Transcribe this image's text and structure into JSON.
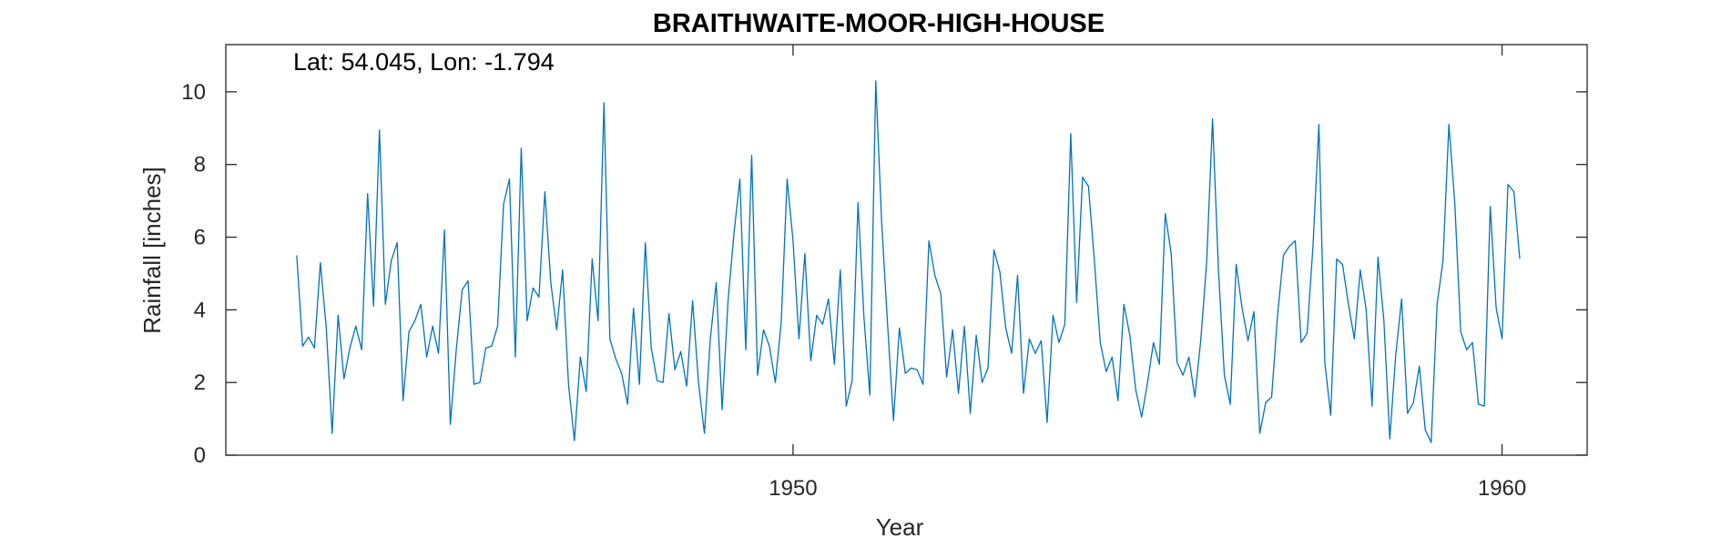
{
  "chart_data": {
    "type": "line",
    "title": "BRAITHWAITE-MOOR-HIGH-HOUSE",
    "annotation": "Lat: 54.045, Lon: -1.794",
    "xlabel": "Year",
    "ylabel": "Rainfall [inches]",
    "xlim": [
      1942,
      1961.2
    ],
    "ylim": [
      0,
      11.3
    ],
    "x_ticks": [
      1950,
      1960
    ],
    "y_ticks": [
      0,
      2,
      4,
      6,
      8,
      10
    ],
    "grid": false,
    "legend": "none",
    "line_color": "#0072BD",
    "series": [
      {
        "x_start": "1943-01",
        "x_step": "month",
        "values": [
          5.5,
          3.0,
          3.25,
          2.95,
          5.3,
          3.5,
          0.6,
          3.85,
          2.1,
          2.95,
          3.55,
          2.9,
          7.2,
          4.1,
          8.95,
          4.15,
          5.35,
          5.85,
          1.5,
          3.4,
          3.7,
          4.15,
          2.7,
          3.55,
          2.8,
          6.2,
          0.85,
          2.9,
          4.55,
          4.8,
          1.95,
          2.0,
          2.95,
          3.0,
          3.55,
          6.9,
          7.6,
          2.7,
          8.45,
          3.7,
          4.6,
          4.35,
          7.25,
          4.75,
          3.45,
          5.1,
          1.95,
          0.4,
          2.7,
          1.75,
          5.4,
          3.7,
          9.7,
          3.2,
          2.65,
          2.25,
          1.4,
          4.05,
          1.95,
          5.85,
          2.95,
          2.05,
          2.0,
          3.9,
          2.35,
          2.85,
          1.9,
          4.25,
          2.0,
          0.6,
          3.2,
          4.75,
          1.25,
          4.25,
          6.1,
          7.6,
          2.9,
          8.25,
          2.2,
          3.45,
          3.0,
          2.0,
          3.65,
          7.6,
          5.9,
          3.2,
          5.55,
          2.6,
          3.85,
          3.6,
          4.3,
          2.5,
          5.1,
          1.35,
          2.05,
          6.95,
          3.8,
          1.65,
          10.3,
          6.4,
          3.6,
          0.95,
          3.5,
          2.25,
          2.4,
          2.35,
          1.95,
          5.9,
          4.95,
          4.45,
          2.15,
          3.45,
          1.7,
          3.55,
          1.15,
          3.3,
          2.0,
          2.4,
          5.65,
          5.05,
          3.5,
          2.8,
          4.95,
          1.7,
          3.2,
          2.8,
          3.15,
          0.9,
          3.85,
          3.1,
          3.6,
          8.85,
          4.2,
          7.65,
          7.4,
          5.35,
          3.1,
          2.3,
          2.7,
          1.5,
          4.15,
          3.3,
          1.8,
          1.05,
          2.0,
          3.1,
          2.5,
          6.65,
          5.55,
          2.55,
          2.2,
          2.7,
          1.6,
          3.15,
          5.3,
          9.25,
          5.1,
          2.2,
          1.4,
          5.25,
          4.05,
          3.15,
          3.95,
          0.6,
          1.45,
          1.6,
          3.85,
          5.5,
          5.75,
          5.9,
          3.1,
          3.35,
          5.75,
          9.1,
          2.55,
          1.1,
          5.4,
          5.25,
          4.15,
          3.2,
          5.1,
          4.0,
          1.35,
          5.45,
          3.7,
          0.45,
          2.75,
          4.3,
          1.15,
          1.45,
          2.45,
          0.7,
          0.35,
          4.15,
          5.35,
          9.1,
          6.95,
          3.4,
          2.9,
          3.1,
          1.4,
          1.35,
          6.85,
          4.05,
          3.2,
          7.45,
          7.25,
          5.4
        ]
      }
    ]
  }
}
